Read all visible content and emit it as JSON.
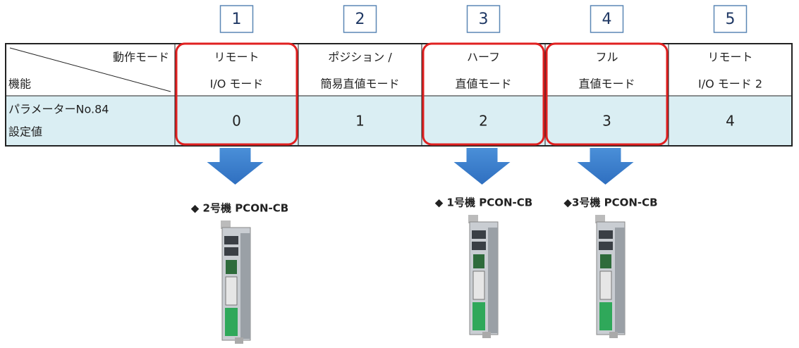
{
  "steps": [
    "1",
    "2",
    "3",
    "4",
    "5"
  ],
  "table": {
    "header_top": "動作モード",
    "header_left": "機能",
    "columns": [
      [
        "リモート",
        "I/O モード"
      ],
      [
        "ポジション /",
        "簡易直値モード"
      ],
      [
        "ハーフ",
        "直値モード"
      ],
      [
        "フル",
        "直値モード"
      ],
      [
        "リモート",
        "I/O モード 2"
      ]
    ],
    "row_label": [
      "パラメーターNo.84",
      "設定値"
    ],
    "values": [
      0,
      1,
      2,
      3,
      4
    ]
  },
  "devices": [
    {
      "label": "◆ 2号機 PCON-CB"
    },
    {
      "label": "◆ 1号機 PCON-CB"
    },
    {
      "label": "◆3号機 PCON-CB"
    }
  ]
}
